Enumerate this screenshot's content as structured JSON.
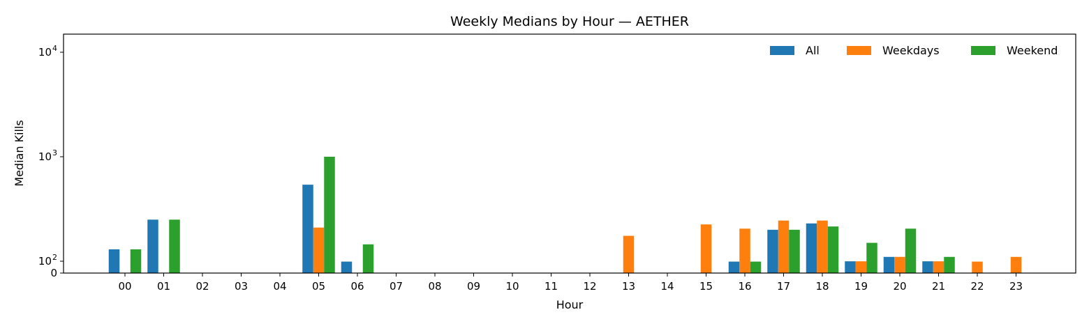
{
  "chart_data": {
    "type": "bar",
    "title": "Weekly Medians by Hour — AETHER",
    "xlabel": "Hour",
    "ylabel": "Median Kills",
    "yscale": "symlog",
    "ylim": [
      0,
      14000
    ],
    "yticks": [
      {
        "value": 0,
        "base": "0",
        "exp": ""
      },
      {
        "value": 100,
        "base": "10",
        "exp": "2"
      },
      {
        "value": 1000,
        "base": "10",
        "exp": "3"
      },
      {
        "value": 10000,
        "base": "10",
        "exp": "4"
      }
    ],
    "categories": [
      "00",
      "01",
      "02",
      "03",
      "04",
      "05",
      "06",
      "07",
      "08",
      "09",
      "10",
      "11",
      "12",
      "13",
      "14",
      "15",
      "16",
      "17",
      "18",
      "19",
      "20",
      "21",
      "22",
      "23"
    ],
    "series": [
      {
        "name": "All",
        "color": "#1f77b4",
        "values": [
          130,
          250,
          0,
          0,
          0,
          540,
          80,
          0,
          0,
          0,
          0,
          0,
          0,
          0,
          0,
          0,
          80,
          200,
          230,
          95,
          110,
          95,
          0,
          0
        ]
      },
      {
        "name": "Weekdays",
        "color": "#ff7f0e",
        "values": [
          0,
          0,
          0,
          0,
          0,
          210,
          0,
          0,
          0,
          0,
          0,
          0,
          0,
          175,
          0,
          225,
          205,
          245,
          245,
          95,
          110,
          95,
          80,
          110
        ]
      },
      {
        "name": "Weekend",
        "color": "#2ca02c",
        "values": [
          130,
          250,
          0,
          0,
          0,
          1000,
          145,
          0,
          0,
          0,
          0,
          0,
          0,
          0,
          0,
          0,
          80,
          200,
          215,
          150,
          205,
          110,
          0,
          0
        ]
      }
    ],
    "legend": {
      "position": "top-right",
      "columns": 3
    }
  }
}
